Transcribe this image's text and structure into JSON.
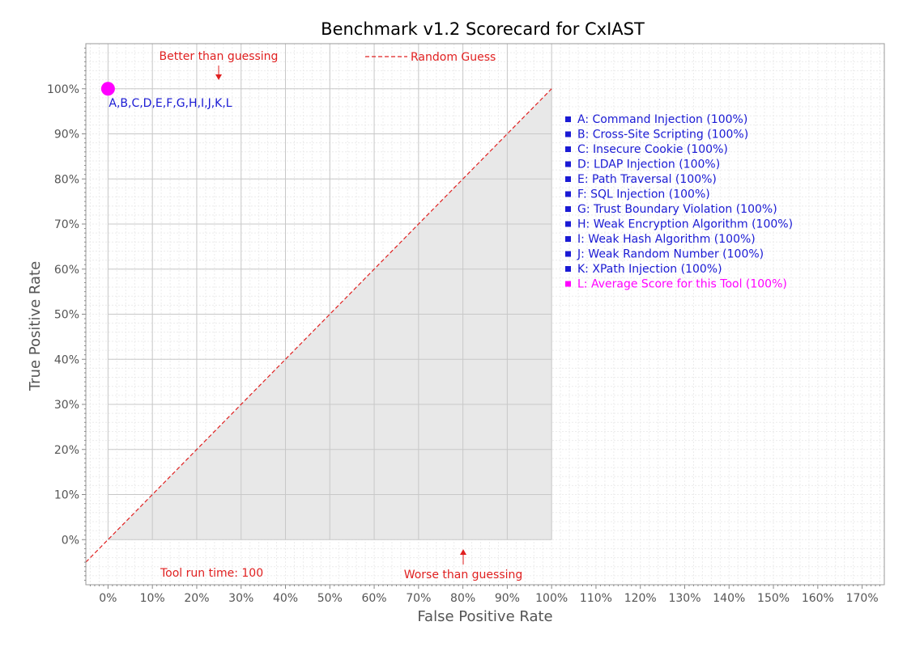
{
  "chart_data": {
    "type": "scatter",
    "title": "Benchmark v1.2 Scorecard for CxIAST",
    "xlabel": "False Positive Rate",
    "ylabel": "True Positive Rate",
    "xlim": [
      -5,
      175
    ],
    "ylim": [
      -10,
      110
    ],
    "x_ticks": [
      0,
      10,
      20,
      30,
      40,
      50,
      60,
      70,
      80,
      90,
      100,
      110,
      120,
      130,
      140,
      150,
      160,
      170
    ],
    "y_ticks": [
      0,
      10,
      20,
      30,
      40,
      50,
      60,
      70,
      80,
      90,
      100
    ],
    "tick_suffix": "%",
    "grid": true,
    "shaded_region": "below-diagonal",
    "random_guess": {
      "label": "Random Guess",
      "from": [
        -5,
        -5
      ],
      "to": [
        100,
        100
      ]
    },
    "points": [
      {
        "x": 0,
        "y": 100,
        "label": "A,B,C,D,E,F,G,H,I,J,K,L"
      }
    ],
    "annotations": {
      "better": "Better than guessing",
      "worse": "Worse than guessing",
      "runtime": "Tool run time: 100"
    },
    "legend_position": "right",
    "legend": [
      {
        "key": "A",
        "text": "A: Command Injection (100%)"
      },
      {
        "key": "B",
        "text": "B: Cross-Site Scripting (100%)"
      },
      {
        "key": "C",
        "text": "C: Insecure Cookie (100%)"
      },
      {
        "key": "D",
        "text": "D: LDAP Injection (100%)"
      },
      {
        "key": "E",
        "text": "E: Path Traversal (100%)"
      },
      {
        "key": "F",
        "text": "F: SQL Injection (100%)"
      },
      {
        "key": "G",
        "text": "G: Trust Boundary Violation (100%)"
      },
      {
        "key": "H",
        "text": "H: Weak Encryption Algorithm (100%)"
      },
      {
        "key": "I",
        "text": "I:  Weak Hash Algorithm (100%)"
      },
      {
        "key": "J",
        "text": "J: Weak Random Number (100%)"
      },
      {
        "key": "K",
        "text": "K: XPath Injection (100%)"
      },
      {
        "key": "L",
        "text": "L: Average Score for this Tool (100%)",
        "highlight": true
      }
    ],
    "colors": {
      "category": "#1a1ad4",
      "average": "#ff00ff",
      "random": "#e02020",
      "annotation": "#e02020",
      "shade": "#e8e8e8",
      "grid_major": "#c8c8c8",
      "grid_minor": "#ececec"
    }
  }
}
